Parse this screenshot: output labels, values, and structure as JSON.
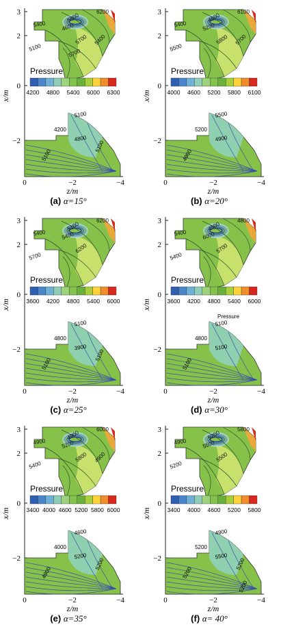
{
  "common": {
    "x_axis_label": "z/m",
    "y_axis_label": "x/m",
    "x_ticks": [
      "0",
      "−2",
      "−4"
    ],
    "y_ticks": [
      "3",
      "2",
      "0",
      "−2"
    ],
    "legend_title": "Pressure"
  },
  "panels": [
    {
      "id": "a",
      "tag": "(a)",
      "caption": "α=15°",
      "legend_ticks": [
        "4200",
        "4800",
        "5400",
        "6000",
        "6300"
      ],
      "legend_colors": [
        "#2f5fb3",
        "#4a86c9",
        "#6fb1d6",
        "#8fcdb8",
        "#9fd27c",
        "#84c24e",
        "#6ab13b",
        "#a8cf3a",
        "#ffd23a",
        "#f08d2c",
        "#d8271d"
      ],
      "top_labels": [
        "5400",
        "6200",
        "5800",
        "4600",
        "5100",
        "5700",
        "5400",
        "5700"
      ],
      "bottom_labels": [
        "5100",
        "4200",
        "4800",
        "5100",
        "5100"
      ],
      "extra_label": ""
    },
    {
      "id": "b",
      "tag": "(b)",
      "caption": "α=20°",
      "legend_ticks": [
        "4000",
        "4600",
        "5200",
        "5800",
        "6100"
      ],
      "legend_colors": [
        "#2f5fb3",
        "#4a86c9",
        "#6fb1d6",
        "#8fcdb8",
        "#9fd27c",
        "#84c24e",
        "#6ab13b",
        "#a8cf3a",
        "#ffd23a",
        "#f08d2c",
        "#d8271d"
      ],
      "top_labels": [
        "5400",
        "6100",
        "4600",
        "5200",
        "5500",
        "5800",
        "5700"
      ],
      "bottom_labels": [
        "5500",
        "5200",
        "4900",
        "4900"
      ],
      "extra_label": ""
    },
    {
      "id": "c",
      "tag": "(c)",
      "caption": "α=25°",
      "legend_ticks": [
        "3600",
        "4200",
        "4800",
        "5400",
        "6000"
      ],
      "legend_colors": [
        "#2f5fb3",
        "#4a86c9",
        "#6fb1d6",
        "#8fcdb8",
        "#9fd27c",
        "#84c24e",
        "#6ab13b",
        "#a8cf3a",
        "#ffd23a",
        "#f08d2c",
        "#d8271d"
      ],
      "top_labels": [
        "5400",
        "6200",
        "5100",
        "5400",
        "5700",
        "6200"
      ],
      "bottom_labels": [
        "5100",
        "4800",
        "3900",
        "5100",
        "5100"
      ],
      "extra_label": ""
    },
    {
      "id": "d",
      "tag": "(d)",
      "caption": "α=30°",
      "legend_ticks": [
        "3600",
        "4200",
        "4800",
        "5400",
        "6000"
      ],
      "legend_colors": [
        "#2f5fb3",
        "#4a86c9",
        "#6fb1d6",
        "#8fcdb8",
        "#9fd27c",
        "#84c24e",
        "#6ab13b",
        "#a8cf3a",
        "#ffd23a",
        "#f08d2c",
        "#d8271d"
      ],
      "top_labels": [
        "5400",
        "4800",
        "4500",
        "6000",
        "5400",
        "5700"
      ],
      "bottom_labels": [
        "5100",
        "4800",
        "5100",
        "5100"
      ],
      "extra_label": "Pressure"
    },
    {
      "id": "e",
      "tag": "(e)",
      "caption": "α=35°",
      "legend_ticks": [
        "3400",
        "4000",
        "4600",
        "5200",
        "5800",
        "6000"
      ],
      "legend_colors": [
        "#2f5fb3",
        "#4a86c9",
        "#6fb1d6",
        "#8fcdb8",
        "#9fd27c",
        "#84c24e",
        "#6ab13b",
        "#a8cf3a",
        "#ffd23a",
        "#f08d2c",
        "#d8271d"
      ],
      "top_labels": [
        "4900",
        "6000",
        "4900",
        "5200",
        "5400",
        "5800",
        "4900"
      ],
      "bottom_labels": [
        "4600",
        "4000",
        "5200",
        "4900",
        "5200"
      ],
      "extra_label": ""
    },
    {
      "id": "f",
      "tag": "(f)",
      "caption": "α= 40°",
      "legend_ticks": [
        "3400",
        "4000",
        "4600",
        "5200",
        "5800"
      ],
      "legend_colors": [
        "#2f5fb3",
        "#4a86c9",
        "#6fb1d6",
        "#8fcdb8",
        "#9fd27c",
        "#84c24e",
        "#6ab13b",
        "#a8cf3a",
        "#ffd23a",
        "#f08d2c",
        "#d8271d"
      ],
      "top_labels": [
        "4900",
        "5800",
        "5200",
        "5500",
        "5200",
        "5500"
      ],
      "bottom_labels": [
        "4900",
        "5200",
        "5500",
        "5200",
        "5200",
        "5200"
      ],
      "extra_label": ""
    }
  ]
}
